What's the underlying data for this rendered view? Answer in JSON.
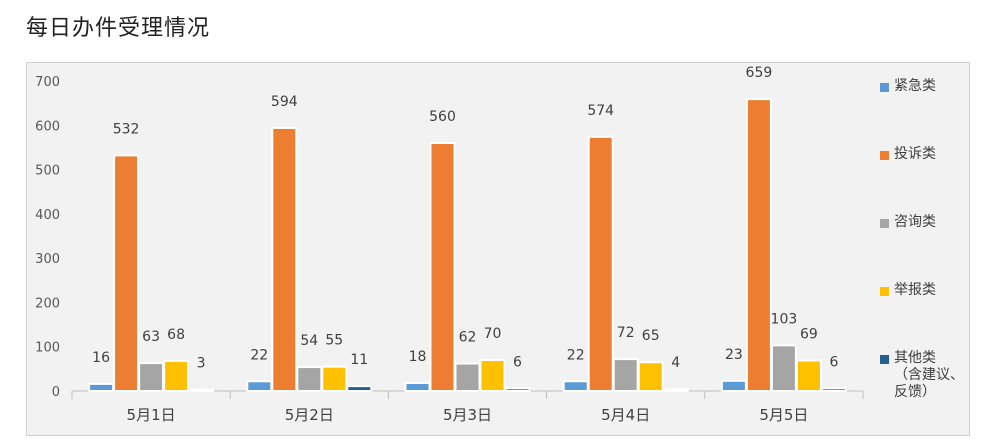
{
  "title": "每日办件受理情况",
  "chart_data": {
    "type": "bar",
    "title": "每日办件受理情况",
    "categories": [
      "5月1日",
      "5月2日",
      "5月3日",
      "5月4日",
      "5月5日"
    ],
    "series": [
      {
        "name": "紧急类",
        "color": "#5b9bd5",
        "values": [
          16,
          22,
          18,
          22,
          23
        ]
      },
      {
        "name": "投诉类",
        "color": "#ed7d31",
        "values": [
          532,
          594,
          560,
          574,
          659
        ]
      },
      {
        "name": "咨询类",
        "color": "#a5a5a5",
        "values": [
          63,
          54,
          62,
          72,
          103
        ]
      },
      {
        "name": "举报类",
        "color": "#ffc000",
        "values": [
          68,
          55,
          70,
          65,
          69
        ]
      },
      {
        "name": "其他类\n（含建议、\n反馈）",
        "color": "#255e91",
        "values": [
          3,
          11,
          6,
          4,
          6
        ]
      }
    ],
    "yticks": [
      0,
      100,
      200,
      300,
      400,
      500,
      600,
      700
    ],
    "ylim": [
      0,
      700
    ],
    "grid": false,
    "legend_position": "right"
  }
}
